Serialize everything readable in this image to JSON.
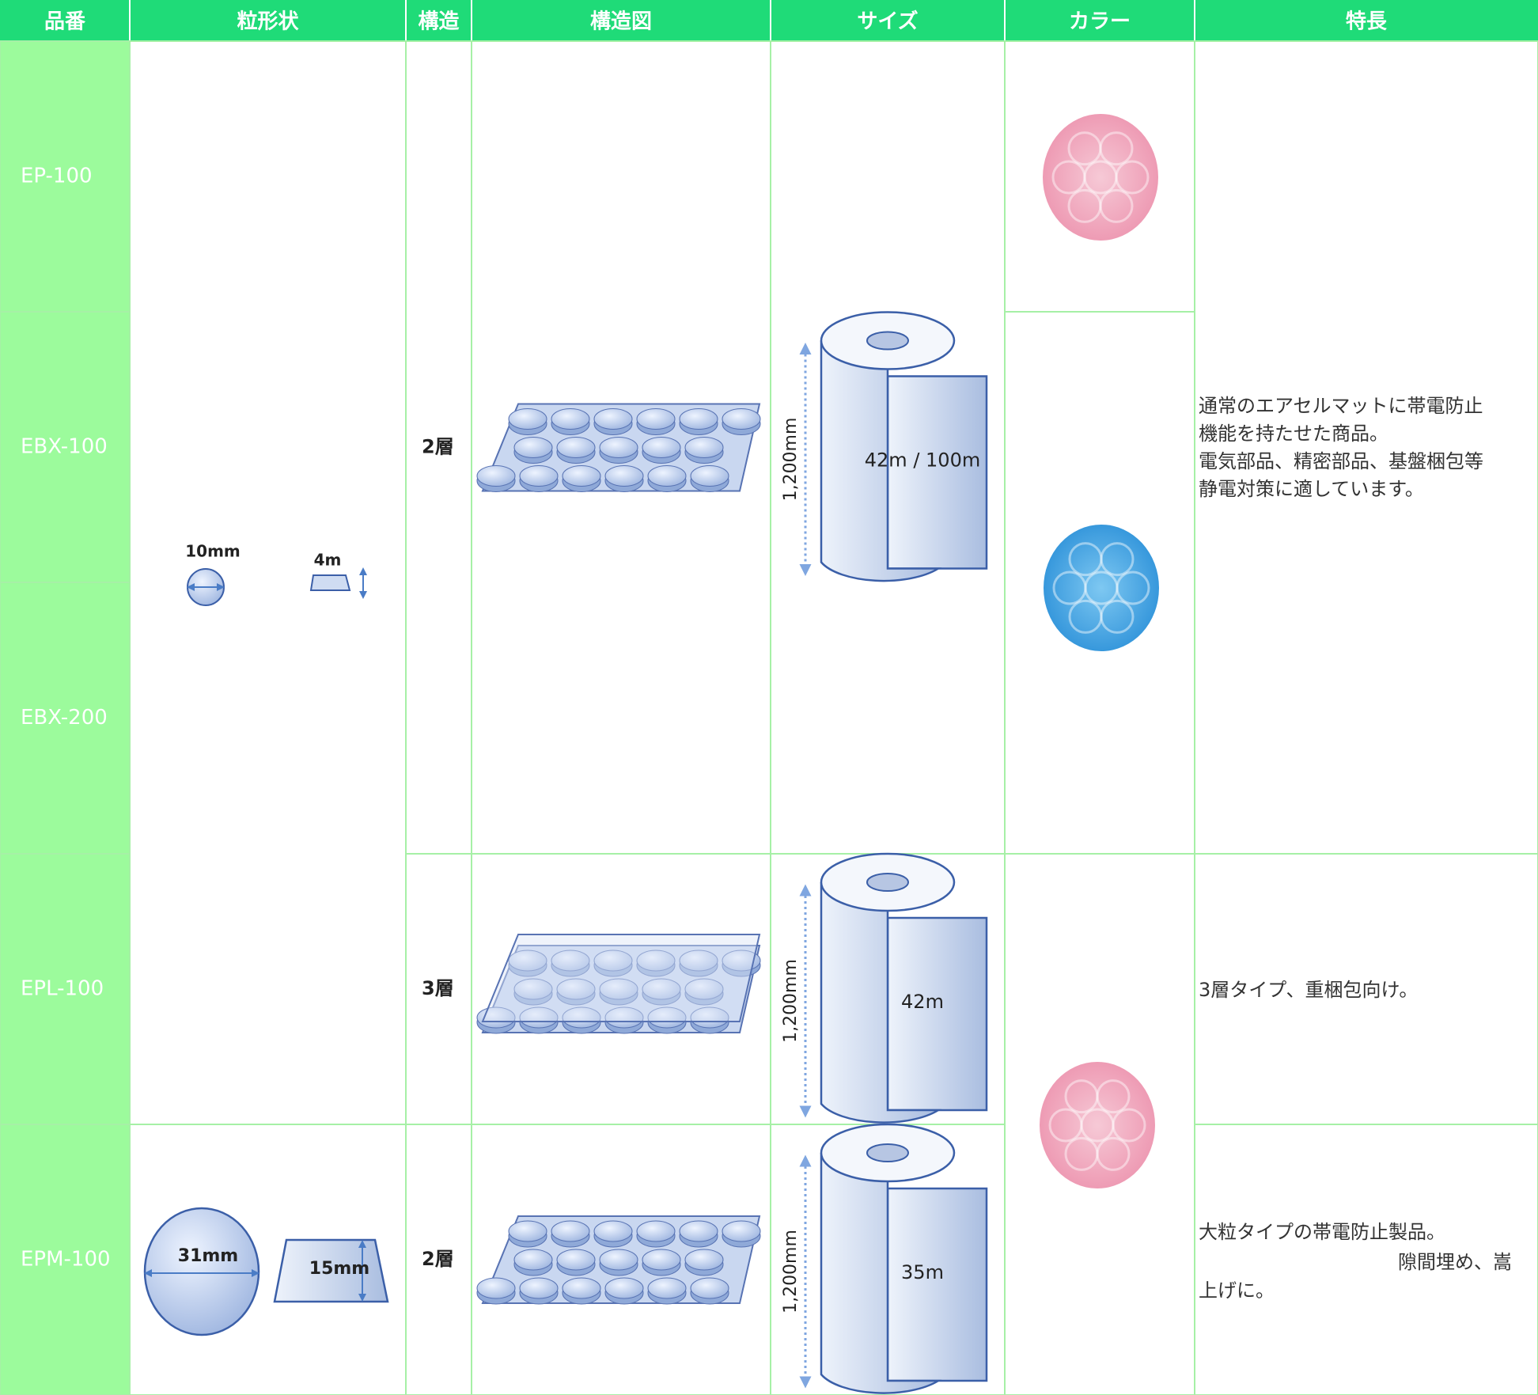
{
  "header": [
    "品番",
    "粒形状",
    "構造",
    "構造図",
    "サイズ",
    "カラー",
    "特長"
  ],
  "products": [
    "EP-100",
    "EBX-100",
    "EBX-200",
    "EPL-100",
    "EPM-100"
  ],
  "grain_shapes": [
    {
      "diameter": "10mm",
      "height": "4m"
    },
    {
      "diameter": "31mm",
      "height": "15mm"
    }
  ],
  "structures": [
    "2層",
    "3層",
    "2層"
  ],
  "sizes": [
    {
      "width": "1,200mm",
      "length": "42m / 100m"
    },
    {
      "width": "1,200mm",
      "length": "42m"
    },
    {
      "width": "1,200mm",
      "length": "35m"
    }
  ],
  "features": [
    [
      "通常のエアセルマットに帯電防止",
      "機能を持たせた商品。",
      "電気部品、精密部品、基盤梱包等",
      "静電対策に適しています。"
    ],
    [
      "3層タイプ、重梱包向け。"
    ],
    [
      "大粒タイプの帯電防止製品。",
      "隙間埋め、嵩",
      "上げに。"
    ]
  ]
}
